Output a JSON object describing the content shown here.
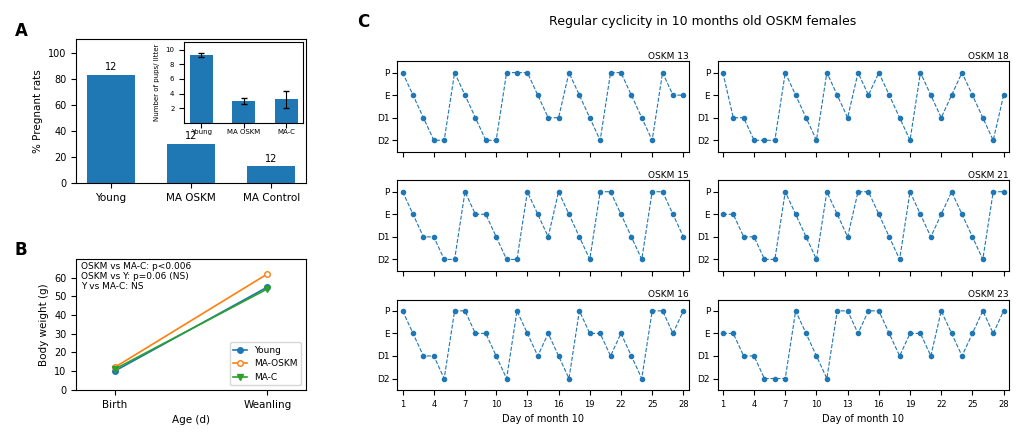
{
  "chart_data": [
    {
      "type": "bar",
      "categories": [
        "Young",
        "MA OSKM",
        "MA Control"
      ],
      "values": [
        83,
        30,
        13
      ],
      "n": [
        12,
        12,
        12
      ],
      "ylabel": "% Pregnant rats",
      "ylim": [
        0,
        110
      ],
      "yticks": [
        0,
        20,
        40,
        60,
        80,
        100
      ],
      "annotations": [
        "A"
      ]
    },
    {
      "type": "bar",
      "categories": [
        "Young",
        "MA OSKM",
        "MA-C"
      ],
      "values": [
        9.3,
        3.0,
        3.2
      ],
      "errors": [
        0.3,
        0.4,
        1.1
      ],
      "ylabel": "Number of pups/ litter",
      "ylim": [
        0,
        11
      ],
      "yticks": [
        2,
        4,
        6,
        8,
        10
      ]
    },
    {
      "type": "line",
      "categories": [
        "Birth",
        "Weanling"
      ],
      "xlabel": "Age (d)",
      "ylabel": "Body weight (g)",
      "ylim": [
        0,
        70
      ],
      "yticks": [
        0,
        10,
        20,
        30,
        40,
        50,
        60
      ],
      "series": [
        {
          "name": "Young",
          "values": [
            10,
            55
          ],
          "marker": "circle"
        },
        {
          "name": "MA-OSKM",
          "values": [
            12,
            62
          ],
          "marker": "open_circle"
        },
        {
          "name": "MA-C",
          "values": [
            11,
            54
          ],
          "marker": "triangle_down"
        }
      ],
      "legend": "lower right",
      "annotations": [
        "B",
        "OSKM vs MA-C: p<0.006\nOSKM vs Y: p=0.06 (NS)\nY vs MA-C: NS"
      ]
    },
    {
      "type": "line",
      "title": "Regular cyclicity in 10 months old OSKM females",
      "annotations": [
        "C",
        "OSKM 13"
      ],
      "x": [
        1,
        2,
        3,
        4,
        5,
        6,
        7,
        8,
        9,
        10,
        11,
        12,
        13,
        14,
        15,
        16,
        17,
        18,
        19,
        20,
        21,
        22,
        23,
        24,
        25,
        26,
        27,
        28
      ],
      "values": [
        3,
        2,
        1,
        0,
        0,
        3,
        2,
        1,
        0,
        0,
        3,
        3,
        3,
        2,
        1,
        1,
        3,
        2,
        1,
        0,
        3,
        3,
        2,
        1,
        0,
        3,
        2,
        2
      ],
      "xlim": [
        0.5,
        28.5
      ],
      "xticks": [
        1,
        4,
        7,
        10,
        13,
        16,
        19,
        22,
        25,
        28
      ],
      "ylim": [
        -0.5,
        3.5
      ],
      "yticks": [
        {
          "value": 3,
          "label": "P"
        },
        {
          "value": 2,
          "label": "E"
        },
        {
          "value": 1,
          "label": "D1"
        },
        {
          "value": 0,
          "label": "D2"
        }
      ],
      "line_style": "dashed",
      "marker": "circle",
      "tick_labels": "y"
    },
    {
      "type": "line",
      "annotations": [
        "OSKM 15"
      ],
      "x": [
        1,
        2,
        3,
        4,
        5,
        6,
        7,
        8,
        9,
        10,
        11,
        12,
        13,
        14,
        15,
        16,
        17,
        18,
        19,
        20,
        21,
        22,
        23,
        24,
        25,
        26,
        27,
        28
      ],
      "values": [
        3,
        2,
        1,
        1,
        0,
        0,
        3,
        2,
        2,
        1,
        0,
        0,
        3,
        2,
        1,
        3,
        2,
        1,
        0,
        3,
        3,
        2,
        1,
        0,
        3,
        3,
        2,
        1
      ],
      "xlim": [
        0.5,
        28.5
      ],
      "xticks": [
        1,
        4,
        7,
        10,
        13,
        16,
        19,
        22,
        25,
        28
      ],
      "ylim": [
        -0.5,
        3.5
      ],
      "yticks": [
        {
          "value": 3,
          "label": "P"
        },
        {
          "value": 2,
          "label": "E"
        },
        {
          "value": 1,
          "label": "D1"
        },
        {
          "value": 0,
          "label": "D2"
        }
      ],
      "line_style": "dashed",
      "marker": "circle",
      "tick_labels": "y"
    },
    {
      "type": "line",
      "annotations": [
        "OSKM 16"
      ],
      "xlabel": "Day of month 10",
      "x": [
        1,
        2,
        3,
        4,
        5,
        6,
        7,
        8,
        9,
        10,
        11,
        12,
        13,
        14,
        15,
        16,
        17,
        18,
        19,
        20,
        21,
        22,
        23,
        24,
        25,
        26,
        27,
        28
      ],
      "values": [
        3,
        2,
        1,
        1,
        0,
        3,
        3,
        2,
        2,
        1,
        0,
        3,
        2,
        1,
        2,
        1,
        0,
        3,
        2,
        2,
        1,
        2,
        1,
        0,
        3,
        3,
        2,
        3
      ],
      "xlim": [
        0.5,
        28.5
      ],
      "xticks": [
        1,
        4,
        7,
        10,
        13,
        16,
        19,
        22,
        25,
        28
      ],
      "ylim": [
        -0.5,
        3.5
      ],
      "yticks": [
        {
          "value": 3,
          "label": "P"
        },
        {
          "value": 2,
          "label": "E"
        },
        {
          "value": 1,
          "label": "D1"
        },
        {
          "value": 0,
          "label": "D2"
        }
      ],
      "line_style": "dashed",
      "marker": "circle"
    },
    {
      "type": "line",
      "annotations": [
        "OSKM 18"
      ],
      "x": [
        1,
        2,
        3,
        4,
        5,
        6,
        7,
        8,
        9,
        10,
        11,
        12,
        13,
        14,
        15,
        16,
        17,
        18,
        19,
        20,
        21,
        22,
        23,
        24,
        25,
        26,
        27,
        28
      ],
      "values": [
        3,
        1,
        1,
        0,
        0,
        0,
        3,
        2,
        1,
        0,
        3,
        2,
        1,
        3,
        2,
        3,
        2,
        1,
        0,
        3,
        2,
        1,
        2,
        3,
        2,
        1,
        0,
        2
      ],
      "xlim": [
        0.5,
        28.5
      ],
      "xticks": [
        1,
        4,
        7,
        10,
        13,
        16,
        19,
        22,
        25,
        28
      ],
      "ylim": [
        -0.5,
        3.5
      ],
      "yticks": [
        {
          "value": 3,
          "label": "P"
        },
        {
          "value": 2,
          "label": "E"
        },
        {
          "value": 1,
          "label": "D1"
        },
        {
          "value": 0,
          "label": "D2"
        }
      ],
      "line_style": "dashed",
      "marker": "circle",
      "tick_labels": "y"
    },
    {
      "type": "line",
      "annotations": [
        "OSKM 21"
      ],
      "x": [
        1,
        2,
        3,
        4,
        5,
        6,
        7,
        8,
        9,
        10,
        11,
        12,
        13,
        14,
        15,
        16,
        17,
        18,
        19,
        20,
        21,
        22,
        23,
        24,
        25,
        26,
        27,
        28
      ],
      "values": [
        2,
        2,
        1,
        1,
        0,
        0,
        3,
        2,
        1,
        0,
        3,
        2,
        1,
        3,
        3,
        2,
        1,
        0,
        3,
        2,
        1,
        2,
        3,
        2,
        1,
        0,
        3,
        3
      ],
      "xlim": [
        0.5,
        28.5
      ],
      "xticks": [
        1,
        4,
        7,
        10,
        13,
        16,
        19,
        22,
        25,
        28
      ],
      "ylim": [
        -0.5,
        3.5
      ],
      "yticks": [
        {
          "value": 3,
          "label": "P"
        },
        {
          "value": 2,
          "label": "E"
        },
        {
          "value": 1,
          "label": "D1"
        },
        {
          "value": 0,
          "label": "D2"
        }
      ],
      "line_style": "dashed",
      "marker": "circle",
      "tick_labels": "y"
    },
    {
      "type": "line",
      "annotations": [
        "OSKM 23"
      ],
      "xlabel": "Day of month 10",
      "x": [
        1,
        2,
        3,
        4,
        5,
        6,
        7,
        8,
        9,
        10,
        11,
        12,
        13,
        14,
        15,
        16,
        17,
        18,
        19,
        20,
        21,
        22,
        23,
        24,
        25,
        26,
        27,
        28
      ],
      "values": [
        2,
        2,
        1,
        1,
        0,
        0,
        0,
        3,
        2,
        1,
        0,
        3,
        3,
        2,
        3,
        3,
        2,
        1,
        2,
        2,
        1,
        3,
        2,
        1,
        2,
        3,
        2,
        3
      ],
      "xlim": [
        0.5,
        28.5
      ],
      "xticks": [
        1,
        4,
        7,
        10,
        13,
        16,
        19,
        22,
        25,
        28
      ],
      "ylim": [
        -0.5,
        3.5
      ],
      "yticks": [
        {
          "value": 3,
          "label": "P"
        },
        {
          "value": 2,
          "label": "E"
        },
        {
          "value": 1,
          "label": "D1"
        },
        {
          "value": 0,
          "label": "D2"
        }
      ],
      "line_style": "dashed",
      "marker": "circle"
    }
  ]
}
